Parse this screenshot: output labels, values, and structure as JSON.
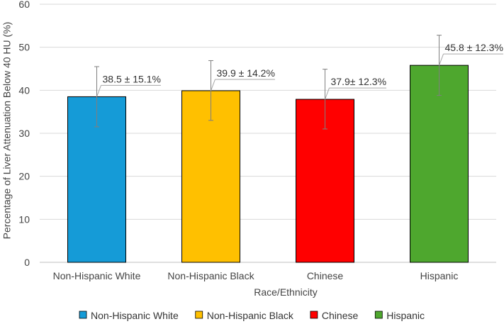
{
  "chart_data": {
    "type": "bar",
    "title": "",
    "xlabel": "Race/Ethnicity",
    "ylabel": "Percentage of Liver Attenuation Below 40 HU (%)",
    "ylim": [
      0,
      60
    ],
    "yticks": [
      0,
      10,
      20,
      30,
      40,
      50,
      60
    ],
    "grid": true,
    "legend_position": "bottom",
    "categories": [
      "Non-Hispanic White",
      "Non-Hispanic Black",
      "Chinese",
      "Hispanic"
    ],
    "values": [
      38.5,
      39.9,
      37.9,
      45.8
    ],
    "error_low": [
      31.5,
      33.0,
      31.0,
      38.8
    ],
    "error_high": [
      45.5,
      46.9,
      44.9,
      52.8
    ],
    "data_labels": [
      "38.5 ± 15.1%",
      "39.9 ± 14.2%",
      "37.9± 12.3%",
      "45.8 ± 12.3%"
    ],
    "colors": [
      "#159BD7",
      "#FFC000",
      "#FF0000",
      "#4EA72E"
    ],
    "legend": [
      "Non-Hispanic White",
      "Non-Hispanic Black",
      "Chinese",
      "Hispanic"
    ]
  }
}
